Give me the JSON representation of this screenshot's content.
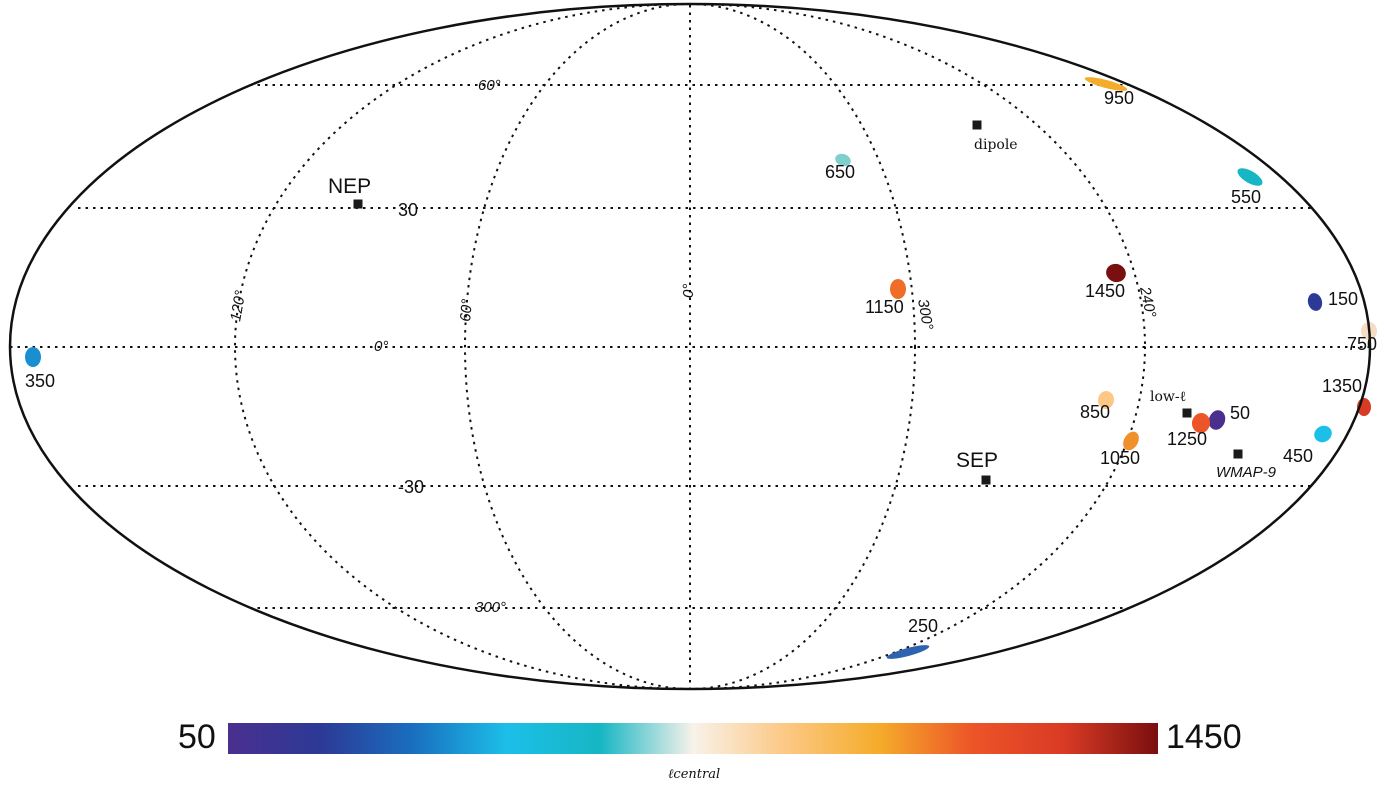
{
  "chart_data": {
    "type": "scatter",
    "projection": "mollweide",
    "title": "",
    "meridian_labels": [
      "300°",
      "240°",
      "0°",
      "60°",
      "120°"
    ],
    "parallel_labels": [
      "30",
      "-30",
      "60°",
      "0°",
      "300°"
    ],
    "points": [
      {
        "label": "50",
        "ell": 50,
        "color": "#4a2f8f"
      },
      {
        "label": "150",
        "ell": 150,
        "color": "#2c3a96"
      },
      {
        "label": "250",
        "ell": 250,
        "color": "#2f63b0"
      },
      {
        "label": "350",
        "ell": 350,
        "color": "#1a8fd0"
      },
      {
        "label": "450",
        "ell": 450,
        "color": "#1cbfe8"
      },
      {
        "label": "550",
        "ell": 550,
        "color": "#16b6c4"
      },
      {
        "label": "650",
        "ell": 650,
        "color": "#7fd0cc"
      },
      {
        "label": "750",
        "ell": 750,
        "color": "#f6dcc4"
      },
      {
        "label": "850",
        "ell": 850,
        "color": "#fcc884"
      },
      {
        "label": "950",
        "ell": 950,
        "color": "#f5ac2a"
      },
      {
        "label": "1050",
        "ell": 1050,
        "color": "#f0902c"
      },
      {
        "label": "1150",
        "ell": 1150,
        "color": "#ef6d26"
      },
      {
        "label": "1250",
        "ell": 1250,
        "color": "#ed5528"
      },
      {
        "label": "1350",
        "ell": 1350,
        "color": "#d83a24"
      },
      {
        "label": "1450",
        "ell": 1450,
        "color": "#7a0f0f"
      }
    ],
    "reference_points": [
      {
        "label": "NEP"
      },
      {
        "label": "SEP"
      },
      {
        "label": "dipole"
      },
      {
        "label": "low-ℓ"
      },
      {
        "label": "WMAP-9"
      }
    ],
    "colorbar": {
      "min_label": "50",
      "max_label": "1450",
      "xlabel": "ℓcentral",
      "range": [
        50,
        1450
      ],
      "colors": [
        "#4a2f8f",
        "#2c3a96",
        "#1a6fc0",
        "#1cbfe8",
        "#16b6c4",
        "#f8f2ea",
        "#fcc884",
        "#f5ac2a",
        "#ed5528",
        "#d83a24",
        "#7a0f0f"
      ]
    }
  }
}
